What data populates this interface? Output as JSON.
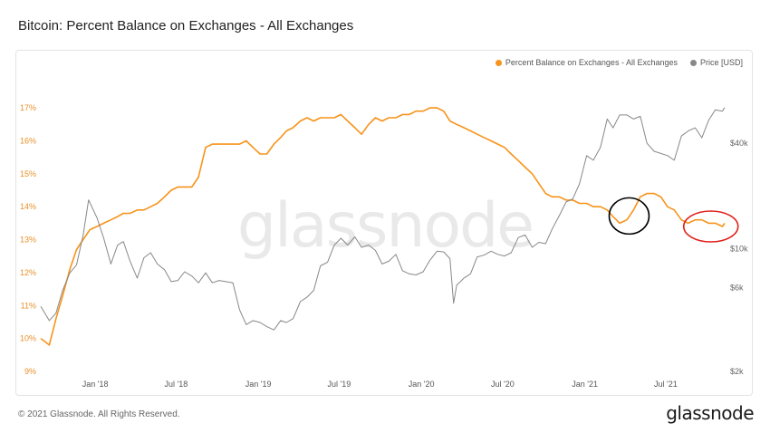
{
  "title": "Bitcoin: Percent Balance on Exchanges - All Exchanges",
  "footer": "© 2021 Glassnode. All Rights Reserved.",
  "logo": "glassnode",
  "watermark": "glassnode",
  "colors": {
    "balance": "#f7931a",
    "price": "#888888",
    "left_axis": "#e8912a",
    "right_axis": "#666666",
    "circle_1": "#000000",
    "circle_2": "#e0201b"
  },
  "chart_data": {
    "type": "line",
    "title": "Bitcoin: Percent Balance on Exchanges - All Exchanges",
    "legend_position": "top-right",
    "x_ticks": [
      "Jan '18",
      "Jul '18",
      "Jan '19",
      "Jul '19",
      "Jan '20",
      "Jul '20",
      "Jan '21",
      "Jul '21"
    ],
    "x_range": [
      "2017-09-01",
      "2021-11-10"
    ],
    "y_left": {
      "unit": "%",
      "ticks": [
        "9%",
        "10%",
        "11%",
        "12%",
        "13%",
        "14%",
        "15%",
        "16%",
        "17%"
      ],
      "ylim": [
        9,
        17.8
      ]
    },
    "y_right": {
      "scale": "log",
      "ticks": [
        "$2k",
        "$6k",
        "$10k",
        "$40k"
      ],
      "ylim": [
        2000,
        90000
      ]
    },
    "series": [
      {
        "name": "Percent Balance on Exchanges - All Exchanges",
        "axis": "left",
        "color": "#f7931a",
        "x": [
          "2017-09-01",
          "2017-09-20",
          "2017-10-05",
          "2017-10-20",
          "2017-11-05",
          "2017-11-20",
          "2017-12-05",
          "2017-12-20",
          "2018-01-05",
          "2018-01-20",
          "2018-02-05",
          "2018-02-20",
          "2018-03-05",
          "2018-03-20",
          "2018-04-05",
          "2018-04-20",
          "2018-05-05",
          "2018-05-20",
          "2018-06-05",
          "2018-06-20",
          "2018-07-05",
          "2018-07-20",
          "2018-08-05",
          "2018-08-20",
          "2018-09-05",
          "2018-09-20",
          "2018-10-05",
          "2018-10-20",
          "2018-11-05",
          "2018-11-20",
          "2018-12-05",
          "2018-12-20",
          "2019-01-05",
          "2019-01-20",
          "2019-02-05",
          "2019-02-20",
          "2019-03-05",
          "2019-03-20",
          "2019-04-05",
          "2019-04-20",
          "2019-05-05",
          "2019-05-20",
          "2019-06-05",
          "2019-06-20",
          "2019-07-05",
          "2019-07-20",
          "2019-08-05",
          "2019-08-20",
          "2019-09-05",
          "2019-09-20",
          "2019-10-05",
          "2019-10-20",
          "2019-11-05",
          "2019-11-20",
          "2019-12-05",
          "2019-12-20",
          "2020-01-05",
          "2020-01-20",
          "2020-02-05",
          "2020-02-20",
          "2020-03-05",
          "2020-03-20",
          "2020-04-05",
          "2020-04-20",
          "2020-05-05",
          "2020-05-20",
          "2020-06-05",
          "2020-06-20",
          "2020-07-05",
          "2020-07-20",
          "2020-08-05",
          "2020-08-20",
          "2020-09-05",
          "2020-09-20",
          "2020-10-05",
          "2020-10-20",
          "2020-11-05",
          "2020-11-20",
          "2020-12-05",
          "2020-12-20",
          "2021-01-05",
          "2021-01-20",
          "2021-02-05",
          "2021-02-20",
          "2021-03-05",
          "2021-03-20",
          "2021-04-05",
          "2021-04-20",
          "2021-05-05",
          "2021-05-20",
          "2021-06-05",
          "2021-06-20",
          "2021-07-05",
          "2021-07-20",
          "2021-08-05",
          "2021-08-20",
          "2021-09-05",
          "2021-09-20",
          "2021-10-05",
          "2021-10-20",
          "2021-11-05",
          "2021-11-10"
        ],
        "values": [
          10.0,
          9.8,
          10.6,
          11.3,
          12.1,
          12.7,
          13.0,
          13.3,
          13.4,
          13.5,
          13.6,
          13.7,
          13.8,
          13.8,
          13.9,
          13.9,
          14.0,
          14.1,
          14.3,
          14.5,
          14.6,
          14.6,
          14.6,
          14.9,
          15.8,
          15.9,
          15.9,
          15.9,
          15.9,
          15.9,
          16.0,
          15.8,
          15.6,
          15.6,
          15.9,
          16.1,
          16.3,
          16.4,
          16.6,
          16.7,
          16.6,
          16.7,
          16.7,
          16.7,
          16.8,
          16.6,
          16.4,
          16.2,
          16.5,
          16.7,
          16.6,
          16.7,
          16.7,
          16.8,
          16.8,
          16.9,
          16.9,
          17.0,
          17.0,
          16.9,
          16.6,
          16.5,
          16.4,
          16.3,
          16.2,
          16.1,
          16.0,
          15.9,
          15.8,
          15.6,
          15.4,
          15.2,
          15.0,
          14.7,
          14.4,
          14.3,
          14.3,
          14.2,
          14.2,
          14.1,
          14.1,
          14.0,
          14.0,
          13.9,
          13.7,
          13.5,
          13.6,
          13.9,
          14.3,
          14.4,
          14.4,
          14.3,
          14.0,
          13.9,
          13.6,
          13.5,
          13.6,
          13.6,
          13.5,
          13.5,
          13.4,
          13.5
        ]
      },
      {
        "name": "Price [USD]",
        "axis": "right",
        "color": "#888888",
        "x": [
          "2017-09-01",
          "2017-09-20",
          "2017-10-05",
          "2017-10-20",
          "2017-11-05",
          "2017-11-20",
          "2017-12-05",
          "2017-12-17",
          "2018-01-05",
          "2018-01-20",
          "2018-02-05",
          "2018-02-20",
          "2018-03-05",
          "2018-03-20",
          "2018-04-05",
          "2018-04-20",
          "2018-05-05",
          "2018-05-20",
          "2018-06-05",
          "2018-06-20",
          "2018-07-05",
          "2018-07-20",
          "2018-08-05",
          "2018-08-20",
          "2018-09-05",
          "2018-09-20",
          "2018-10-05",
          "2018-10-20",
          "2018-11-05",
          "2018-11-20",
          "2018-12-05",
          "2018-12-20",
          "2019-01-05",
          "2019-01-20",
          "2019-02-05",
          "2019-02-20",
          "2019-03-05",
          "2019-03-20",
          "2019-04-05",
          "2019-04-20",
          "2019-05-05",
          "2019-05-20",
          "2019-06-05",
          "2019-06-20",
          "2019-07-05",
          "2019-07-20",
          "2019-08-05",
          "2019-08-20",
          "2019-09-05",
          "2019-09-20",
          "2019-10-05",
          "2019-10-20",
          "2019-11-05",
          "2019-11-20",
          "2019-12-05",
          "2019-12-20",
          "2020-01-05",
          "2020-01-20",
          "2020-02-05",
          "2020-02-20",
          "2020-03-05",
          "2020-03-13",
          "2020-03-20",
          "2020-04-05",
          "2020-04-20",
          "2020-05-05",
          "2020-05-20",
          "2020-06-05",
          "2020-06-20",
          "2020-07-05",
          "2020-07-20",
          "2020-08-05",
          "2020-08-20",
          "2020-09-05",
          "2020-09-20",
          "2020-10-05",
          "2020-10-20",
          "2020-11-05",
          "2020-11-20",
          "2020-12-05",
          "2020-12-20",
          "2021-01-05",
          "2021-01-20",
          "2021-02-05",
          "2021-02-20",
          "2021-03-05",
          "2021-03-20",
          "2021-04-05",
          "2021-04-20",
          "2021-05-05",
          "2021-05-20",
          "2021-06-05",
          "2021-06-20",
          "2021-07-05",
          "2021-07-20",
          "2021-08-05",
          "2021-08-20",
          "2021-09-05",
          "2021-09-20",
          "2021-10-05",
          "2021-10-20",
          "2021-11-05",
          "2021-11-10"
        ],
        "values": [
          4700,
          3900,
          4300,
          5800,
          7300,
          8100,
          12000,
          19000,
          15000,
          11500,
          8200,
          10500,
          11000,
          8500,
          6800,
          8900,
          9500,
          8200,
          7600,
          6500,
          6600,
          7400,
          7000,
          6400,
          7300,
          6400,
          6600,
          6500,
          6400,
          4500,
          3700,
          3900,
          3800,
          3600,
          3450,
          3900,
          3800,
          4000,
          5000,
          5300,
          5800,
          8000,
          8400,
          10500,
          11500,
          10500,
          11700,
          10200,
          10500,
          9800,
          8200,
          8500,
          9300,
          7500,
          7200,
          7100,
          7400,
          8600,
          9700,
          9600,
          8800,
          4900,
          6200,
          6800,
          7200,
          9000,
          9200,
          9700,
          9300,
          9100,
          9500,
          11600,
          12000,
          10200,
          10900,
          10700,
          13000,
          15500,
          18500,
          19300,
          23500,
          34000,
          32000,
          38000,
          55000,
          49000,
          58000,
          58000,
          55000,
          57000,
          40000,
          36000,
          35000,
          34000,
          32000,
          44000,
          47000,
          49000,
          43000,
          54000,
          62000,
          61000,
          64000
        ]
      }
    ],
    "annotations": [
      {
        "shape": "ellipse",
        "color": "black",
        "x_center": "2021-04-10",
        "y_center": 13.72
      },
      {
        "shape": "ellipse",
        "color": "red",
        "x_center": "2021-10-10",
        "y_center": 13.4
      }
    ]
  }
}
